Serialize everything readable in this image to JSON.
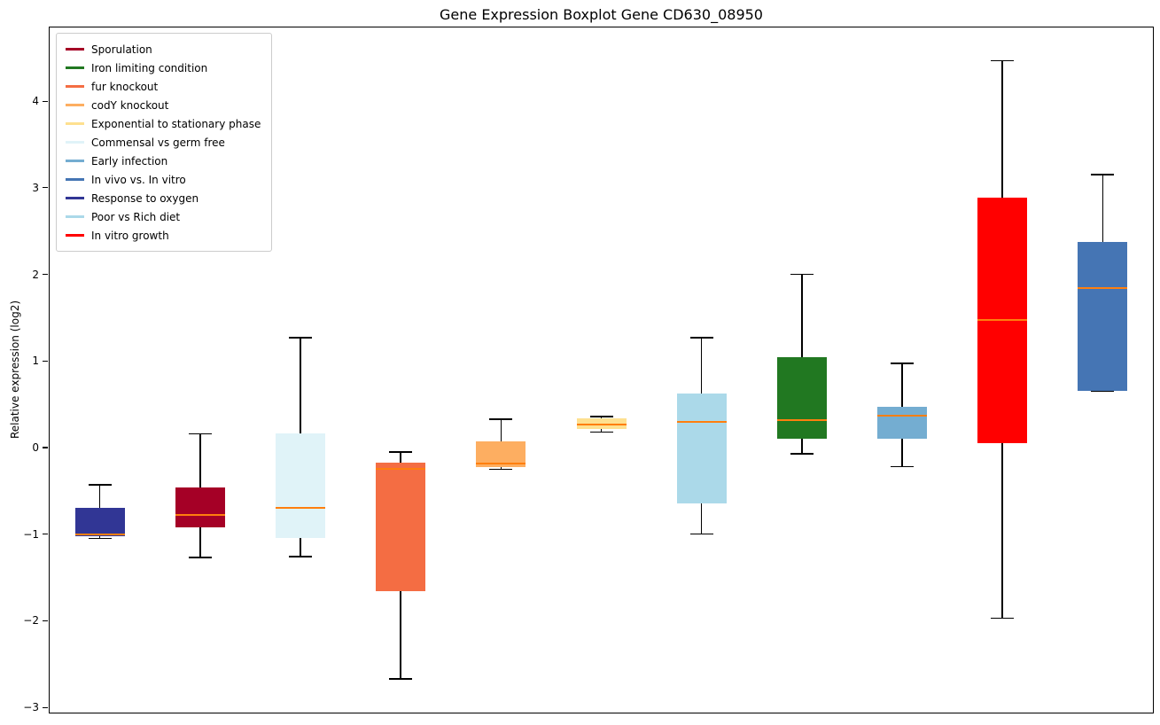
{
  "chart_data": {
    "type": "boxplot",
    "title": "Gene Expression Boxplot Gene CD630_08950",
    "ylabel": "Relative expression (log2)",
    "ylim": [
      -3.07,
      4.86
    ],
    "yticks": [
      4,
      3,
      2,
      1,
      0,
      -1,
      -2,
      -3
    ],
    "grid": false,
    "legend_position": "upper left",
    "median_color": "#ff7f0e",
    "whisker_color": "#000000",
    "legend": [
      {
        "label": "Sporulation",
        "color": "#a50026"
      },
      {
        "label": "Iron limiting condition",
        "color": "#217821"
      },
      {
        "label": "fur knockout",
        "color": "#f46d43"
      },
      {
        "label": "codY knockout",
        "color": "#fdae61"
      },
      {
        "label": "Exponential to stationary phase",
        "color": "#fee090"
      },
      {
        "label": "Commensal vs germ free",
        "color": "#e0f3f8"
      },
      {
        "label": "Early infection",
        "color": "#74add1"
      },
      {
        "label": "In vivo vs. In vitro",
        "color": "#4575b4"
      },
      {
        "label": "Response to oxygen",
        "color": "#313695"
      },
      {
        "label": "Poor vs Rich diet",
        "color": "#abd9e9"
      },
      {
        "label": "In vitro growth",
        "color": "#ff0000"
      }
    ],
    "series": [
      {
        "name": "Response to oxygen",
        "color": "#313695",
        "whisker_low": -1.05,
        "q1": -1.02,
        "median": -1.0,
        "q3": -0.7,
        "whisker_high": -0.43
      },
      {
        "name": "Sporulation",
        "color": "#a50026",
        "whisker_low": -1.27,
        "q1": -0.92,
        "median": -0.78,
        "q3": -0.46,
        "whisker_high": 0.16
      },
      {
        "name": "Commensal vs germ free",
        "color": "#e0f3f8",
        "whisker_low": -1.26,
        "q1": -1.04,
        "median": -0.7,
        "q3": 0.16,
        "whisker_high": 1.27
      },
      {
        "name": "fur knockout",
        "color": "#f46d43",
        "whisker_low": -2.67,
        "q1": -1.66,
        "median": -0.25,
        "q3": -0.17,
        "whisker_high": -0.05
      },
      {
        "name": "codY knockout",
        "color": "#fdae61",
        "whisker_low": -0.25,
        "q1": -0.23,
        "median": -0.18,
        "q3": 0.07,
        "whisker_high": 0.33
      },
      {
        "name": "Exponential to stationary phase",
        "color": "#fee090",
        "whisker_low": 0.18,
        "q1": 0.22,
        "median": 0.27,
        "q3": 0.34,
        "whisker_high": 0.36
      },
      {
        "name": "Poor vs Rich diet",
        "color": "#abd9e9",
        "whisker_low": -1.0,
        "q1": -0.64,
        "median": 0.3,
        "q3": 0.62,
        "whisker_high": 1.27
      },
      {
        "name": "Iron limiting condition",
        "color": "#217821",
        "whisker_low": -0.07,
        "q1": 0.1,
        "median": 0.32,
        "q3": 1.04,
        "whisker_high": 2.0
      },
      {
        "name": "Early infection",
        "color": "#74add1",
        "whisker_low": -0.22,
        "q1": 0.1,
        "median": 0.37,
        "q3": 0.47,
        "whisker_high": 0.97
      },
      {
        "name": "In vitro growth",
        "color": "#ff0000",
        "whisker_low": -1.97,
        "q1": 0.05,
        "median": 1.47,
        "q3": 2.89,
        "whisker_high": 4.47
      },
      {
        "name": "In vivo vs. In vitro",
        "color": "#4575b4",
        "whisker_low": 0.65,
        "q1": 0.65,
        "median": 1.84,
        "q3": 2.37,
        "whisker_high": 3.15
      }
    ]
  }
}
